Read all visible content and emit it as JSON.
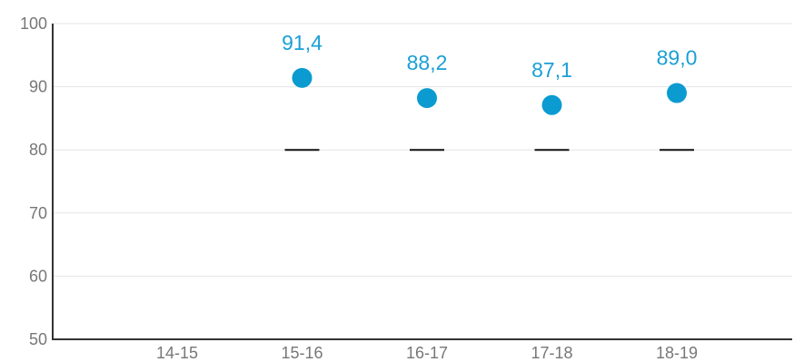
{
  "chart_data": {
    "type": "scatter",
    "categories": [
      "14-15",
      "15-16",
      "16-17",
      "17-18",
      "18-19"
    ],
    "y_ticks": [
      "50",
      "60",
      "70",
      "80",
      "90",
      "100"
    ],
    "ylim": [
      50,
      100
    ],
    "grid": true,
    "series": [
      {
        "values": [
          null,
          91.4,
          88.2,
          87.1,
          89.0
        ],
        "labels": [
          "",
          "91,4",
          "88,2",
          "87,1",
          "89,0"
        ],
        "color": "#0b9bd0"
      }
    ],
    "target_marks": {
      "values": [
        null,
        80,
        80,
        80,
        80
      ],
      "color": "#111111"
    },
    "label_color": "#1a9fd6"
  }
}
